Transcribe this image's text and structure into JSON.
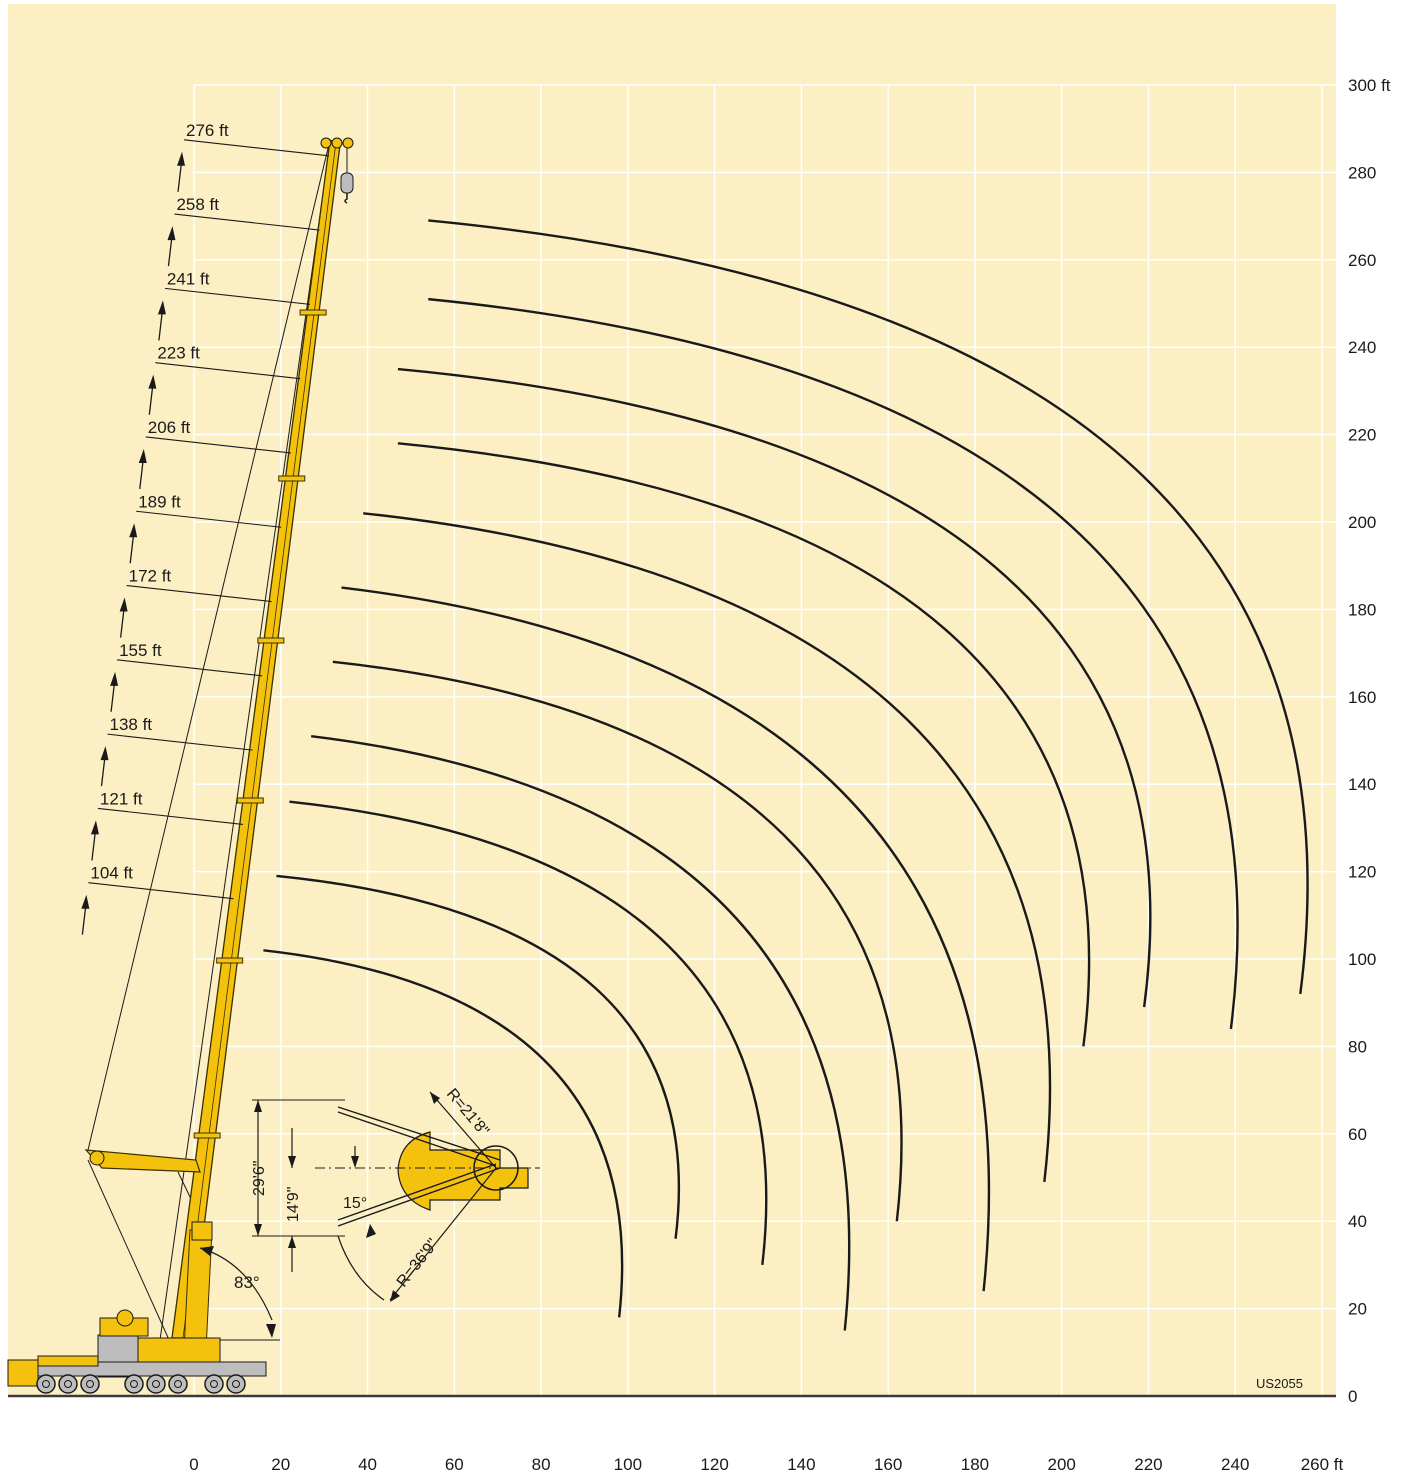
{
  "colors": {
    "background": "#fcefc4",
    "grid": "#ffffff",
    "boom": "#f4c20d",
    "boom_outline": "#3a3000",
    "ink": "#1a1a1a",
    "ground": "#3a3a3a"
  },
  "chart_data": {
    "type": "diagram",
    "x_unit": "ft",
    "y_unit": "ft",
    "xlim": [
      0,
      260
    ],
    "ylim": [
      0,
      300
    ],
    "x_ticks": [
      {
        "value": 0,
        "label": "0"
      },
      {
        "value": 20,
        "label": "20"
      },
      {
        "value": 40,
        "label": "40"
      },
      {
        "value": 60,
        "label": "60"
      },
      {
        "value": 80,
        "label": "80"
      },
      {
        "value": 100,
        "label": "100"
      },
      {
        "value": 120,
        "label": "120"
      },
      {
        "value": 140,
        "label": "140"
      },
      {
        "value": 160,
        "label": "160"
      },
      {
        "value": 180,
        "label": "180"
      },
      {
        "value": 200,
        "label": "200"
      },
      {
        "value": 220,
        "label": "220"
      },
      {
        "value": 240,
        "label": "240"
      },
      {
        "value": 260,
        "label": "260 ft"
      }
    ],
    "y_ticks": [
      {
        "value": 0,
        "label": "0"
      },
      {
        "value": 20,
        "label": "20"
      },
      {
        "value": 40,
        "label": "40"
      },
      {
        "value": 60,
        "label": "60"
      },
      {
        "value": 80,
        "label": "80"
      },
      {
        "value": 100,
        "label": "100"
      },
      {
        "value": 120,
        "label": "120"
      },
      {
        "value": 140,
        "label": "140"
      },
      {
        "value": 160,
        "label": "160"
      },
      {
        "value": 180,
        "label": "180"
      },
      {
        "value": 200,
        "label": "200"
      },
      {
        "value": 220,
        "label": "220"
      },
      {
        "value": 240,
        "label": "240"
      },
      {
        "value": 260,
        "label": "260"
      },
      {
        "value": 280,
        "label": "280"
      },
      {
        "value": 300,
        "label": "300 ft"
      }
    ],
    "boom_lengths": [
      {
        "label": "104 ft",
        "y": 117
      },
      {
        "label": "121 ft",
        "y": 134
      },
      {
        "label": "138 ft",
        "y": 151
      },
      {
        "label": "155 ft",
        "y": 168
      },
      {
        "label": "172 ft",
        "y": 185
      },
      {
        "label": "189 ft",
        "y": 202
      },
      {
        "label": "206 ft",
        "y": 219
      },
      {
        "label": "223 ft",
        "y": 236
      },
      {
        "label": "241 ft",
        "y": 253
      },
      {
        "label": "258 ft",
        "y": 270
      },
      {
        "label": "276 ft",
        "y": 287
      }
    ],
    "range_curves": [
      {
        "start": [
          16,
          102
        ],
        "end": [
          98,
          18
        ]
      },
      {
        "start": [
          19,
          119
        ],
        "end": [
          111,
          36
        ]
      },
      {
        "start": [
          22,
          136
        ],
        "end": [
          131,
          30
        ]
      },
      {
        "start": [
          27,
          151
        ],
        "end": [
          150,
          15
        ]
      },
      {
        "start": [
          32,
          168
        ],
        "end": [
          162,
          40
        ]
      },
      {
        "start": [
          34,
          185
        ],
        "end": [
          182,
          24
        ]
      },
      {
        "start": [
          39,
          202
        ],
        "end": [
          196,
          49
        ]
      },
      {
        "start": [
          47,
          218
        ],
        "end": [
          205,
          80
        ]
      },
      {
        "start": [
          47,
          235
        ],
        "end": [
          219,
          89
        ]
      },
      {
        "start": [
          54,
          251
        ],
        "end": [
          239,
          84
        ]
      },
      {
        "start": [
          54,
          269
        ],
        "end": [
          255,
          92
        ]
      }
    ],
    "angle_label": "83°",
    "dimensions": {
      "vertical_outer": "29'6\"",
      "vertical_inner": "14'9\"",
      "angle": "15°",
      "radius_top": "R=21'8\"",
      "radius_bottom": "R=36'9\""
    },
    "drawing_code": "US2055"
  }
}
